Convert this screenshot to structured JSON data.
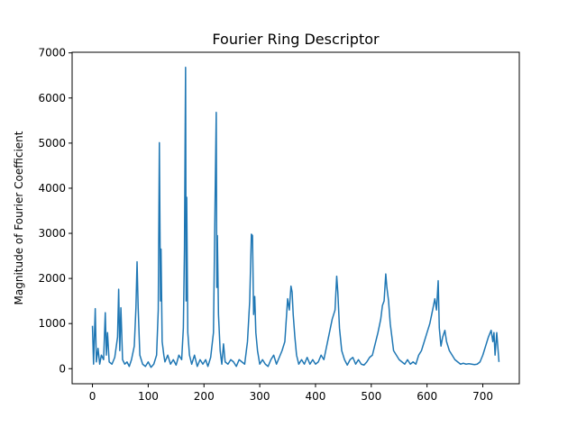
{
  "chart_data": {
    "type": "line",
    "title": "Fourier Ring Descriptor",
    "y_label": "Magnitude of Fourier Coefficient",
    "x": [
      0,
      2,
      5,
      7,
      10,
      13,
      16,
      20,
      23,
      25,
      27,
      30,
      35,
      40,
      45,
      47,
      49,
      51,
      54,
      58,
      62,
      66,
      70,
      75,
      78,
      80,
      82,
      85,
      90,
      95,
      100,
      105,
      110,
      115,
      118,
      120,
      122,
      123,
      125,
      128,
      130,
      135,
      140,
      145,
      150,
      155,
      160,
      163,
      165,
      167,
      168,
      169,
      171,
      174,
      178,
      183,
      188,
      193,
      198,
      203,
      207,
      212,
      217,
      220,
      222,
      223,
      224,
      226,
      229,
      232,
      235,
      238,
      243,
      248,
      253,
      258,
      263,
      268,
      273,
      278,
      282,
      285,
      287,
      289,
      291,
      293,
      296,
      300,
      305,
      310,
      315,
      320,
      325,
      330,
      335,
      340,
      345,
      350,
      353,
      356,
      358,
      360,
      363,
      366,
      370,
      375,
      380,
      385,
      390,
      395,
      400,
      405,
      410,
      415,
      420,
      425,
      430,
      435,
      438,
      440,
      443,
      447,
      452,
      457,
      462,
      467,
      472,
      477,
      482,
      487,
      492,
      497,
      502,
      507,
      512,
      517,
      520,
      523,
      526,
      528,
      531,
      534,
      537,
      540,
      545,
      550,
      555,
      560,
      565,
      570,
      575,
      580,
      585,
      590,
      595,
      600,
      605,
      610,
      614,
      617,
      620,
      622,
      625,
      628,
      632,
      635,
      640,
      645,
      650,
      655,
      660,
      665,
      670,
      675,
      680,
      685,
      690,
      695,
      700,
      705,
      710,
      715,
      718,
      720,
      722,
      725,
      729
    ],
    "series": [
      {
        "color": "#1f77b4",
        "values": [
          950,
          100,
          1330,
          150,
          450,
          100,
          300,
          200,
          1240,
          300,
          800,
          150,
          100,
          250,
          700,
          1760,
          400,
          1350,
          200,
          100,
          150,
          50,
          200,
          500,
          1350,
          2370,
          1350,
          300,
          100,
          50,
          150,
          30,
          100,
          300,
          1300,
          5010,
          1500,
          2650,
          600,
          300,
          150,
          300,
          100,
          200,
          80,
          300,
          200,
          900,
          2650,
          6680,
          1500,
          3800,
          800,
          300,
          100,
          300,
          50,
          200,
          100,
          200,
          50,
          250,
          800,
          3800,
          5680,
          1800,
          2950,
          1200,
          400,
          100,
          550,
          150,
          100,
          200,
          150,
          50,
          200,
          150,
          100,
          600,
          1500,
          2980,
          2950,
          1200,
          1600,
          800,
          400,
          100,
          200,
          100,
          50,
          200,
          300,
          100,
          250,
          400,
          600,
          1550,
          1300,
          1830,
          1700,
          1200,
          700,
          300,
          100,
          200,
          100,
          250,
          100,
          200,
          100,
          150,
          300,
          200,
          500,
          800,
          1100,
          1300,
          2050,
          1700,
          900,
          400,
          200,
          80,
          200,
          250,
          100,
          200,
          100,
          80,
          150,
          250,
          300,
          550,
          800,
          1100,
          1400,
          1500,
          2100,
          1800,
          1500,
          1000,
          700,
          400,
          300,
          200,
          150,
          100,
          200,
          100,
          150,
          100,
          300,
          400,
          600,
          800,
          1000,
          1300,
          1550,
          1300,
          1950,
          900,
          500,
          700,
          850,
          600,
          400,
          300,
          200,
          150,
          100,
          120,
          100,
          110,
          100,
          90,
          100,
          150,
          300,
          500,
          700,
          850,
          600,
          800,
          300,
          800,
          150
        ]
      }
    ],
    "xlim": [
      -36.45,
      765.45
    ],
    "ylim": [
      -334,
      7014
    ],
    "xticks": [
      0,
      100,
      200,
      300,
      400,
      500,
      600,
      700
    ],
    "yticks": [
      0,
      1000,
      2000,
      3000,
      4000,
      5000,
      6000,
      7000
    ]
  }
}
